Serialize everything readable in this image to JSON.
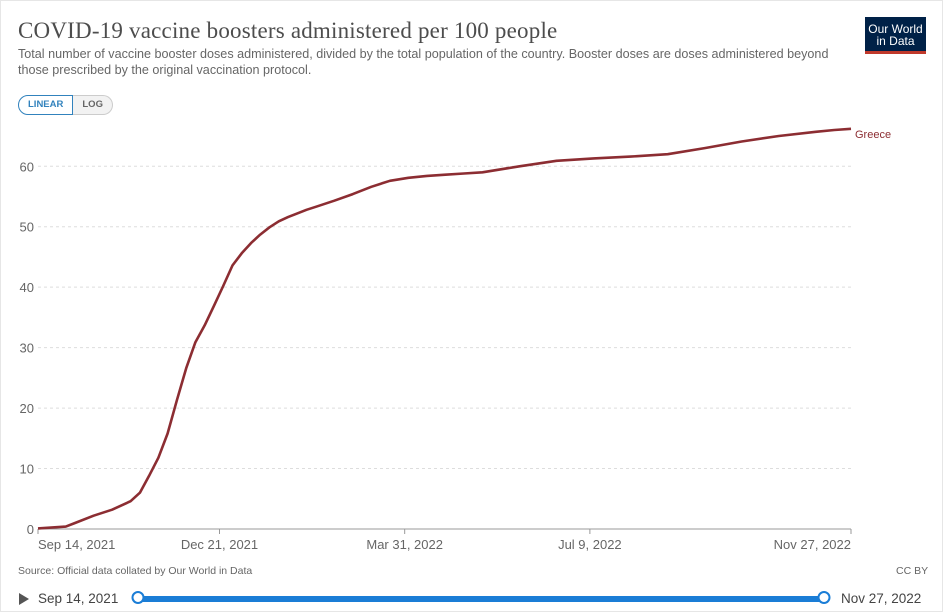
{
  "header": {
    "title": "COVID-19 vaccine boosters administered per 100 people",
    "subtitle": "Total number of vaccine booster doses administered, divided by the total population of the country. Booster doses are doses administered beyond those prescribed by the original vaccination protocol.",
    "logo_line1": "Our World",
    "logo_line2": "in Data"
  },
  "controls": {
    "linear_label": "LINEAR",
    "log_label": "LOG",
    "active": "linear"
  },
  "colors": {
    "series": "#8c2d32",
    "accent": "#1a7dd6",
    "grid": "#dddddd"
  },
  "chart_data": {
    "type": "line",
    "title": "COVID-19 vaccine boosters administered per 100 people",
    "xlabel": "",
    "ylabel": "",
    "ylim": [
      0,
      66
    ],
    "y_ticks": [
      0,
      10,
      20,
      30,
      40,
      50,
      60
    ],
    "x_ticks": [
      "Sep 14, 2021",
      "Dec 21, 2021",
      "Mar 31, 2022",
      "Jul 9, 2022",
      "Nov 27, 2022"
    ],
    "x_tick_days": [
      0,
      98,
      198,
      298,
      439
    ],
    "x_range_days": [
      0,
      439
    ],
    "grid": true,
    "series": [
      {
        "name": "Greece",
        "x_days": [
          0,
          15,
          20,
          30,
          40,
          50,
          55,
          60,
          65,
          70,
          75,
          80,
          85,
          90,
          95,
          100,
          105,
          110,
          115,
          120,
          125,
          130,
          135,
          140,
          145,
          150,
          160,
          170,
          180,
          190,
          200,
          210,
          220,
          230,
          240,
          260,
          280,
          300,
          320,
          340,
          360,
          380,
          400,
          420,
          430,
          439
        ],
        "values": [
          0.1,
          0.4,
          1.0,
          2.2,
          3.2,
          4.6,
          6.0,
          8.8,
          11.8,
          15.8,
          21.3,
          26.6,
          30.9,
          33.7,
          36.9,
          40.2,
          43.6,
          45.6,
          47.3,
          48.7,
          49.9,
          50.9,
          51.6,
          52.2,
          52.8,
          53.3,
          54.3,
          55.4,
          56.6,
          57.6,
          58.1,
          58.4,
          58.6,
          58.8,
          59.0,
          60.0,
          60.9,
          61.3,
          61.6,
          62.0,
          63.0,
          64.1,
          65.0,
          65.7,
          66.0,
          66.2
        ]
      }
    ]
  },
  "footer": {
    "source": "Source: Official data collated by Our World in Data",
    "license": "CC BY"
  },
  "timeline": {
    "start": "Sep 14, 2021",
    "end": "Nov 27, 2022"
  }
}
